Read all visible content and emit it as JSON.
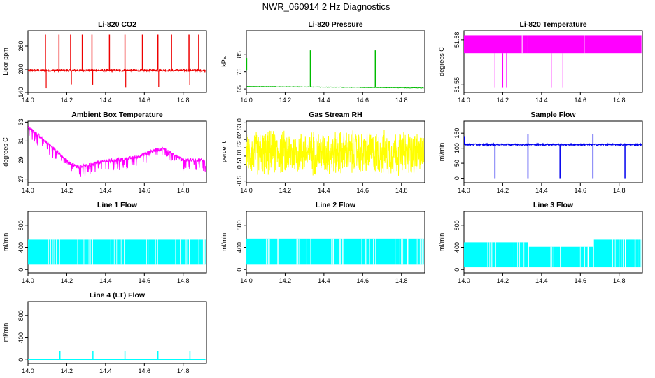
{
  "title": "NWR_060914  2 Hz Diagnostics",
  "colors": {
    "red": "#ee0000",
    "green": "#00bb00",
    "magenta": "#ff00ff",
    "yellow": "#ffff00",
    "blue": "#0000ee",
    "cyan": "#00ffff"
  },
  "chart_data": [
    {
      "id": "co2",
      "type": "line",
      "title": "Li-820 CO2",
      "ylabel": "Licor ppm",
      "color": "red",
      "xlim": [
        14.0,
        14.92
      ],
      "ylim": [
        140,
        300
      ],
      "xticks": [
        "14.0",
        "14.2",
        "14.4",
        "14.6",
        "14.8"
      ],
      "yticks": [
        "140",
        "200",
        "260"
      ],
      "series": [
        {
          "name": "CO2",
          "baseline": 197,
          "noise": 5,
          "spikes_x": [
            14.09,
            14.16,
            14.22,
            14.28,
            14.33,
            14.42,
            14.5,
            14.59,
            14.67,
            14.74,
            14.83,
            14.88
          ],
          "spike_top": 290,
          "dips_to": 150
        }
      ]
    },
    {
      "id": "pressure",
      "type": "line",
      "title": "Li-820 Pressure",
      "ylabel": "kPa",
      "color": "green",
      "xlim": [
        14.0,
        14.92
      ],
      "ylim": [
        63,
        99
      ],
      "xticks": [
        "14.0",
        "14.2",
        "14.4",
        "14.6",
        "14.8"
      ],
      "yticks": [
        "65",
        "75",
        "85"
      ],
      "series": [
        {
          "name": "Pressure",
          "start": 66.4,
          "end": 65.6,
          "spikes_x": [
            14.33,
            14.665
          ],
          "spike_top": 87.5,
          "initial_value": 83
        }
      ]
    },
    {
      "id": "licor-temp",
      "type": "area",
      "title": "Li-820 Temperature",
      "ylabel": "degrees C",
      "color": "magenta",
      "xlim": [
        14.0,
        14.92
      ],
      "ylim": [
        51.545,
        51.586
      ],
      "xticks": [
        "14.0",
        "14.2",
        "14.4",
        "14.6",
        "14.8"
      ],
      "yticks": [
        "51.55",
        "51.58"
      ],
      "series": [
        {
          "name": "Temperature",
          "low": 51.571,
          "high": 51.583,
          "dips_x": [
            14.16,
            14.2,
            14.22,
            14.45,
            14.51
          ],
          "dip_to": 51.548
        }
      ]
    },
    {
      "id": "box-temp",
      "type": "line",
      "title": "Ambient Box Temperature",
      "ylabel": "degrees C",
      "color": "magenta",
      "xlim": [
        14.0,
        14.92
      ],
      "ylim": [
        26.6,
        33.1
      ],
      "xticks": [
        "14.0",
        "14.2",
        "14.4",
        "14.6",
        "14.8"
      ],
      "yticks": [
        "27",
        "29",
        "31",
        "33"
      ],
      "series": [
        {
          "name": "Box temp",
          "x": [
            14.0,
            14.05,
            14.1,
            14.15,
            14.2,
            14.25,
            14.3,
            14.35,
            14.4,
            14.45,
            14.5,
            14.55,
            14.6,
            14.65,
            14.7,
            14.75,
            14.8,
            14.85,
            14.9
          ],
          "y": [
            32.4,
            31.7,
            30.8,
            29.9,
            28.9,
            28.3,
            28.4,
            28.7,
            28.9,
            29.0,
            29.1,
            29.3,
            29.6,
            30.0,
            30.2,
            29.6,
            29.0,
            29.0,
            29.0
          ]
        }
      ]
    },
    {
      "id": "rh",
      "type": "area",
      "title": "Gas Stream RH",
      "ylabel": "percent",
      "color": "yellow",
      "xlim": [
        14.0,
        14.92
      ],
      "ylim": [
        -0.6,
        3.1
      ],
      "xticks": [
        "14.0",
        "14.2",
        "14.4",
        "14.6",
        "14.8"
      ],
      "yticks": [
        "-0.5",
        "0.5",
        "1.0",
        "1.5",
        "2.0",
        "2.5",
        "3.0"
      ],
      "series": [
        {
          "name": "RH",
          "center": 1.2,
          "spread": 1.5
        }
      ]
    },
    {
      "id": "sample-flow",
      "type": "line",
      "title": "Sample Flow",
      "ylabel": "ml/min",
      "color": "blue",
      "xlim": [
        14.0,
        14.92
      ],
      "ylim": [
        -15,
        190
      ],
      "xticks": [
        "14.0",
        "14.2",
        "14.4",
        "14.6",
        "14.8"
      ],
      "yticks": [
        "0",
        "50",
        "100",
        "150"
      ],
      "series": [
        {
          "name": "Sample flow",
          "baseline": 112,
          "dips_x": [
            14.16,
            14.33,
            14.495,
            14.665,
            14.83
          ],
          "dip_to": 0,
          "spikes_x": [
            14.33,
            14.665
          ],
          "spike_top": 148
        }
      ]
    },
    {
      "id": "line1",
      "type": "area",
      "title": "Line 1 Flow",
      "ylabel": "ml/min",
      "color": "cyan",
      "xlim": [
        14.0,
        14.92
      ],
      "ylim": [
        -60,
        1050
      ],
      "xticks": [
        "14.0",
        "14.2",
        "14.4",
        "14.6",
        "14.8"
      ],
      "yticks": [
        "0",
        "400",
        "800"
      ],
      "series": [
        {
          "name": "Line 1",
          "segments": [
            {
              "x": [
                14.0,
                14.16
              ],
              "low": 100,
              "high": 540
            },
            {
              "x": [
                14.165,
                14.33
              ],
              "low": 100,
              "high": 540
            },
            {
              "x": [
                14.335,
                14.495
              ],
              "low": 100,
              "high": 540
            },
            {
              "x": [
                14.5,
                14.665
              ],
              "low": 100,
              "high": 540
            },
            {
              "x": [
                14.67,
                14.83
              ],
              "low": 100,
              "high": 540
            },
            {
              "x": [
                14.835,
                14.915
              ],
              "low": 100,
              "high": 540
            }
          ]
        }
      ]
    },
    {
      "id": "line2",
      "type": "area",
      "title": "Line 2 Flow",
      "ylabel": "ml/min",
      "color": "cyan",
      "xlim": [
        14.0,
        14.92
      ],
      "ylim": [
        -60,
        1050
      ],
      "xticks": [
        "14.0",
        "14.2",
        "14.4",
        "14.6",
        "14.8"
      ],
      "yticks": [
        "0",
        "400",
        "800"
      ],
      "series": [
        {
          "name": "Line 2",
          "segments": [
            {
              "x": [
                14.0,
                14.16
              ],
              "low": 100,
              "high": 560
            },
            {
              "x": [
                14.165,
                14.33
              ],
              "low": 100,
              "high": 560
            },
            {
              "x": [
                14.335,
                14.495
              ],
              "low": 100,
              "high": 560
            },
            {
              "x": [
                14.5,
                14.665
              ],
              "low": 100,
              "high": 560
            },
            {
              "x": [
                14.67,
                14.83
              ],
              "low": 100,
              "high": 560
            },
            {
              "x": [
                14.835,
                14.915
              ],
              "low": 100,
              "high": 560
            }
          ]
        }
      ]
    },
    {
      "id": "line3",
      "type": "area",
      "title": "Line 3 Flow",
      "ylabel": "ml/min",
      "color": "cyan",
      "xlim": [
        14.0,
        14.92
      ],
      "ylim": [
        -60,
        1050
      ],
      "xticks": [
        "14.0",
        "14.2",
        "14.4",
        "14.6",
        "14.8"
      ],
      "yticks": [
        "0",
        "400",
        "800"
      ],
      "series": [
        {
          "name": "Line 3",
          "segments": [
            {
              "x": [
                14.0,
                14.16
              ],
              "low": 40,
              "high": 490
            },
            {
              "x": [
                14.165,
                14.33
              ],
              "low": 40,
              "high": 490
            },
            {
              "x": [
                14.335,
                14.495
              ],
              "low": 40,
              "high": 410
            },
            {
              "x": [
                14.5,
                14.665
              ],
              "low": 40,
              "high": 410
            },
            {
              "x": [
                14.67,
                14.83
              ],
              "low": 40,
              "high": 540
            },
            {
              "x": [
                14.835,
                14.915
              ],
              "low": 40,
              "high": 540
            }
          ]
        }
      ]
    },
    {
      "id": "line4",
      "type": "line",
      "title": "Line 4 (LT) Flow",
      "ylabel": "ml/min",
      "color": "cyan",
      "xlim": [
        14.0,
        14.92
      ],
      "ylim": [
        -60,
        1050
      ],
      "xticks": [
        "14.0",
        "14.2",
        "14.4",
        "14.6",
        "14.8"
      ],
      "yticks": [
        "0",
        "400",
        "800"
      ],
      "series": [
        {
          "name": "Line 4",
          "baseline": 5,
          "spikes_x": [
            14.165,
            14.335,
            14.5,
            14.67,
            14.835
          ],
          "spike_top": 160
        }
      ]
    }
  ]
}
